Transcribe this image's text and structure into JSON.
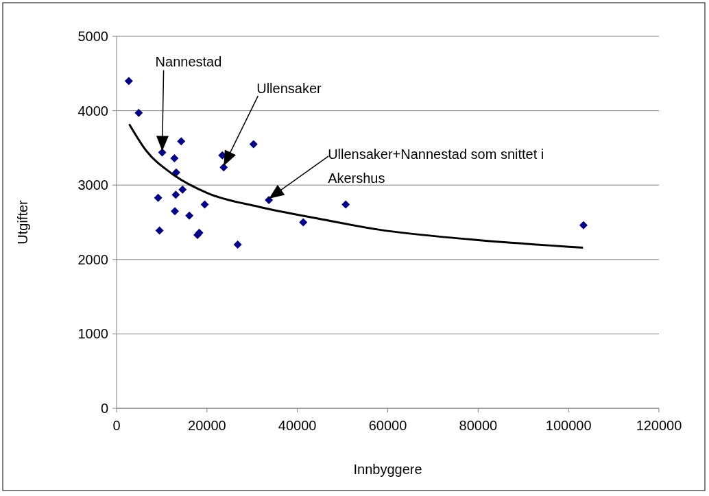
{
  "chart_data": {
    "type": "scatter",
    "xlabel": "Innbyggere",
    "ylabel": "Utgifter",
    "xlim": [
      0,
      120000
    ],
    "ylim": [
      0,
      5000
    ],
    "xticks": [
      0,
      20000,
      40000,
      60000,
      80000,
      100000,
      120000
    ],
    "yticks": [
      0,
      1000,
      2000,
      3000,
      4000,
      5000
    ],
    "grid": "y",
    "series": [
      {
        "color": "#000080",
        "marker": "diamond",
        "x": [
          2700,
          4900,
          14300,
          10100,
          12800,
          30300,
          23400,
          23700,
          13200,
          14600,
          9200,
          13100,
          19500,
          12900,
          16100,
          33700,
          9500,
          17900,
          18300,
          26800,
          41300,
          50700,
          103300
        ],
        "values": [
          4400,
          3970,
          3590,
          3440,
          3360,
          3550,
          3400,
          3240,
          3170,
          2940,
          2830,
          2870,
          2740,
          2650,
          2590,
          2800,
          2390,
          2330,
          2360,
          2200,
          2500,
          2740,
          2460
        ]
      },
      {
        "type": "line",
        "color": "#000000",
        "x": [
          2800,
          6600,
          12100,
          20200,
          31400,
          45500,
          58200,
          78400,
          103200
        ],
        "values": [
          3820,
          3460,
          3160,
          2890,
          2710,
          2540,
          2400,
          2270,
          2160
        ]
      }
    ],
    "annotations": [
      {
        "text": "Nannestad",
        "x": 10100,
        "y": 3440
      },
      {
        "text": "Ullensaker",
        "x": 23700,
        "y": 3240
      },
      {
        "text": "Ullensaker+Nannestad som snittet i Akershus",
        "x": 33700,
        "y": 2800
      }
    ]
  }
}
